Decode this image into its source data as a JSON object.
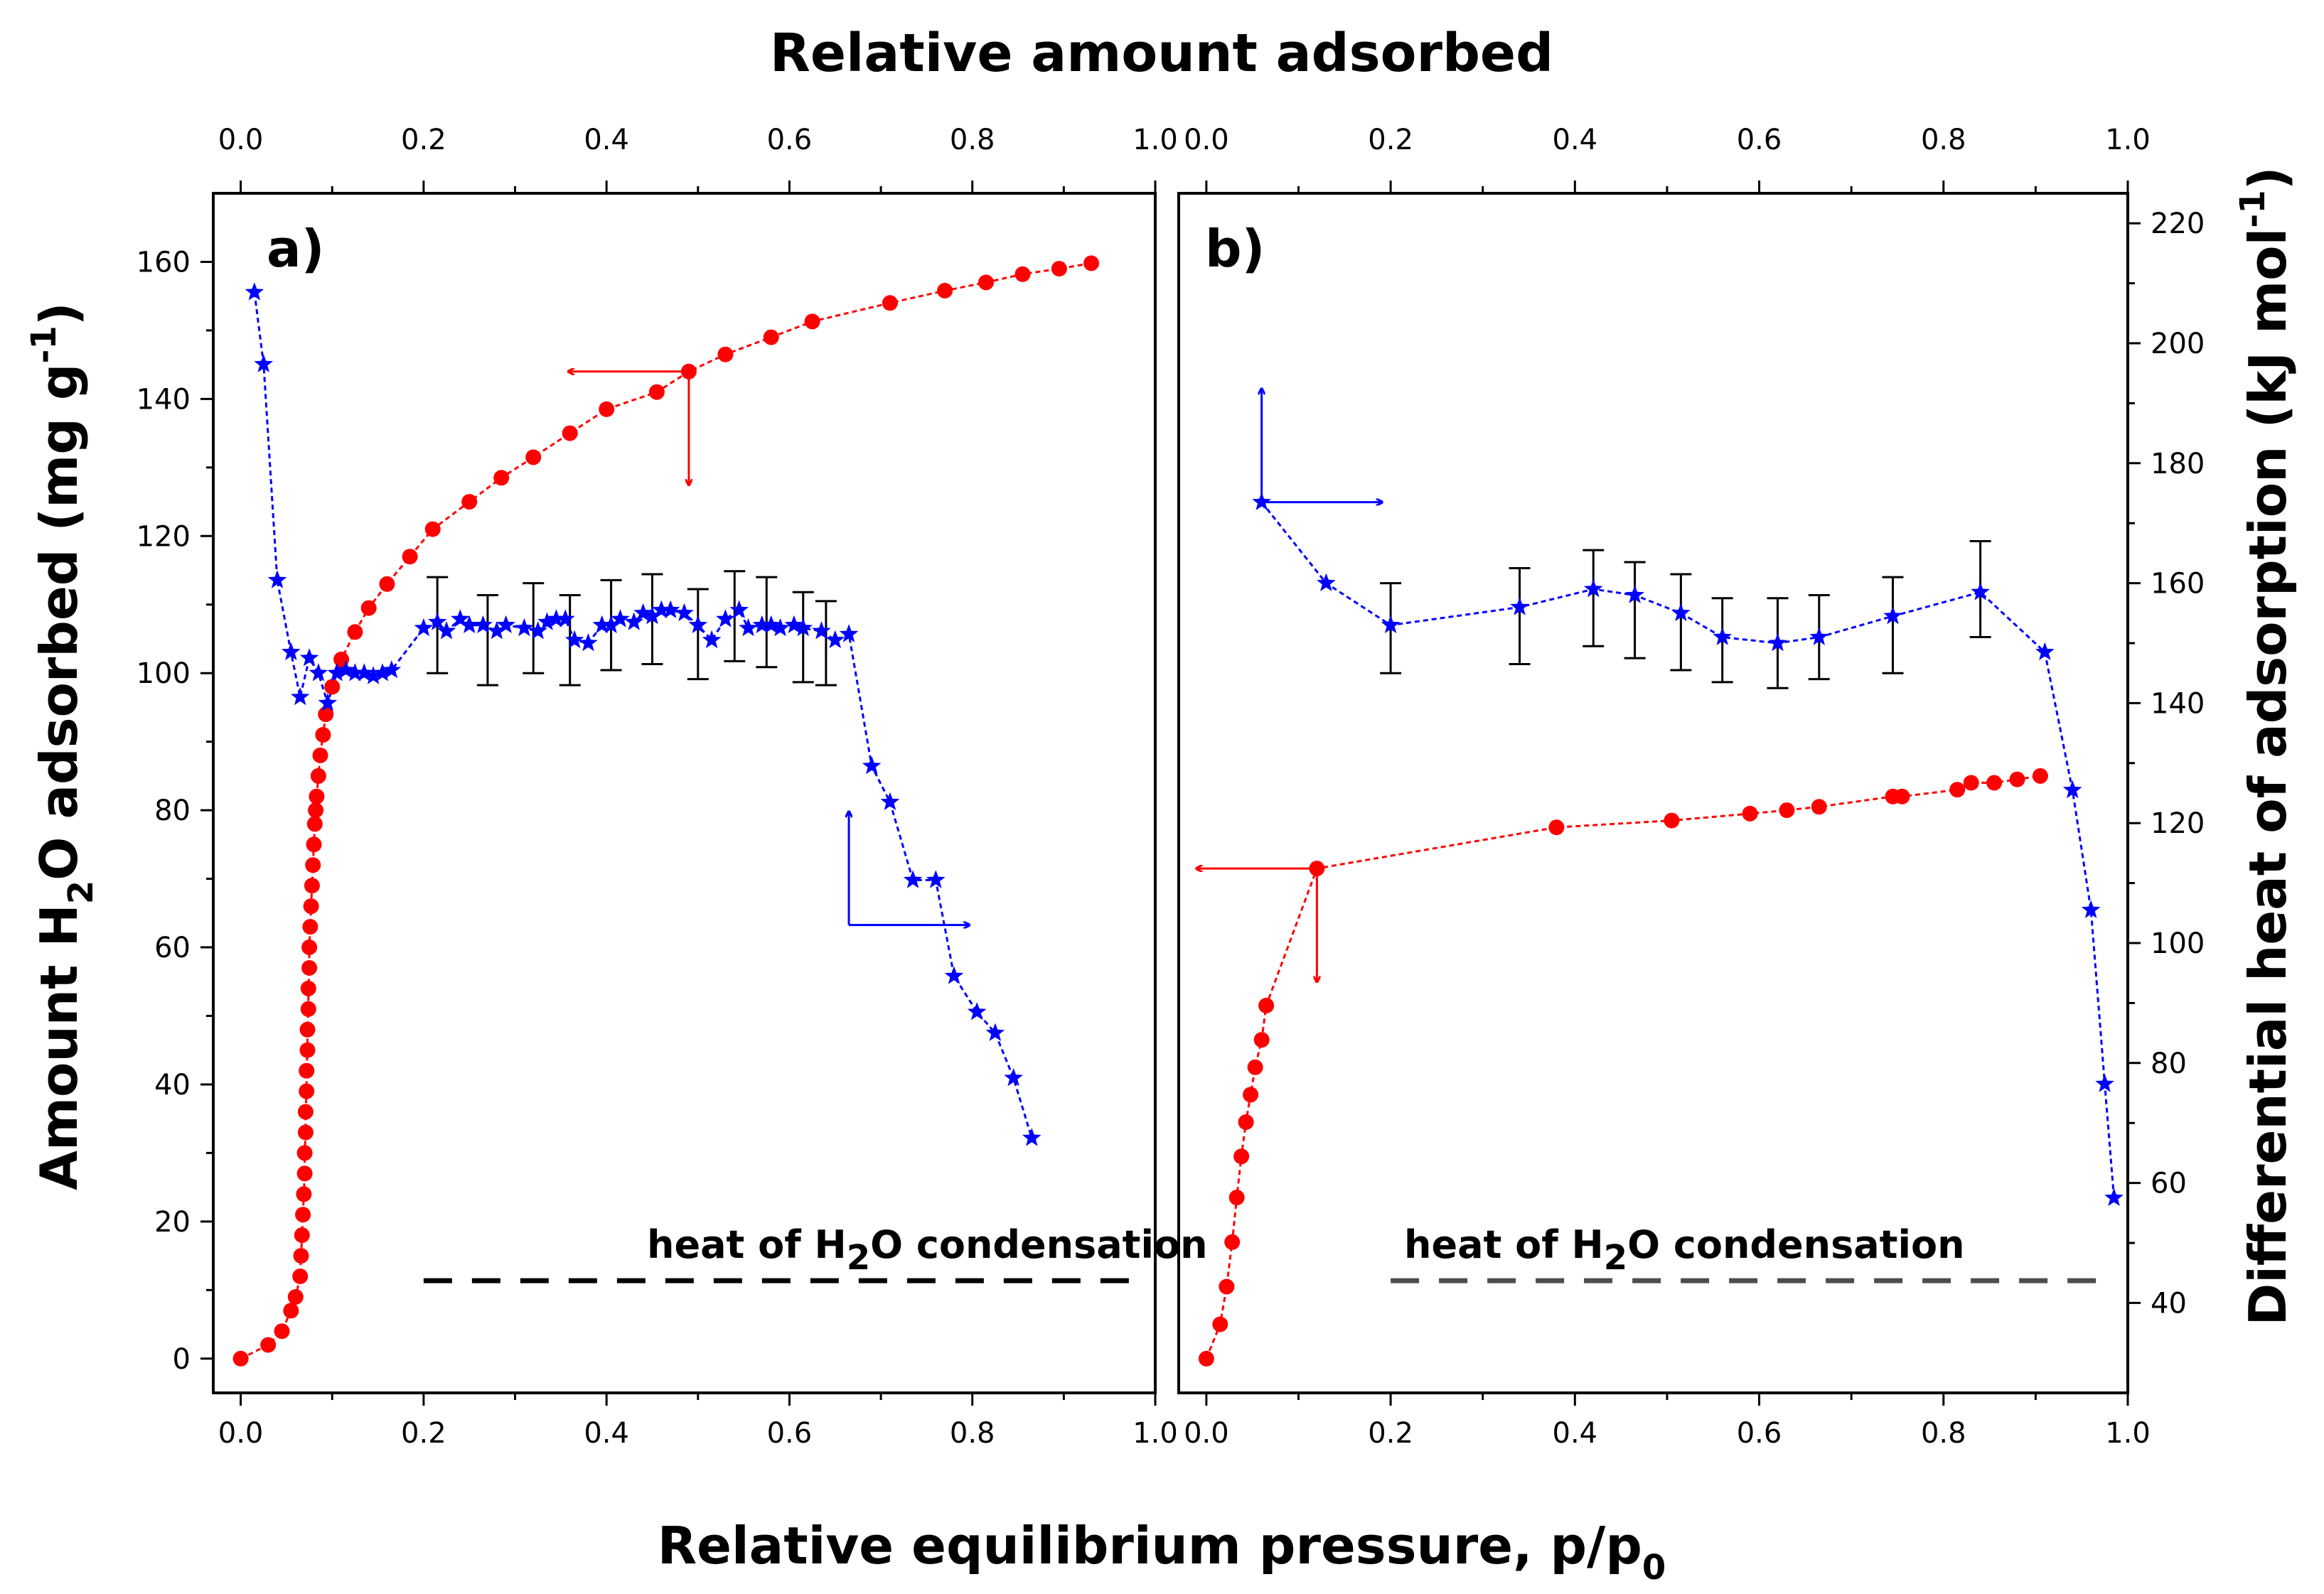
{
  "figure": {
    "top_title": "Relative amount adsorbed",
    "x_label": "Relative equilibrium pressure, p/p",
    "x_label_sub": "0",
    "y_left_label_pre": "Amount H",
    "y_left_label_sub": "2",
    "y_left_label_post": "O adsorbed (mg g",
    "y_left_label_sup": "-1",
    "y_left_label_end": ")",
    "y_right_label_pre": "Differential heat of adsorption (kJ mol",
    "y_right_label_sup": "-1",
    "y_right_label_end": ")",
    "condensation_pre": "heat of H",
    "condensation_sub": "2",
    "condensation_post": "O condensation",
    "colors": {
      "amount": "#ff0000",
      "heat": "#0000ff",
      "errorbar": "#000000",
      "condensation_a": "#000000",
      "condensation_b": "#4d4d4d"
    }
  },
  "chart_data": [
    {
      "panel": "a)",
      "type": "scatter",
      "xlim": [
        -0.03,
        1.0
      ],
      "x_ticks": [
        "0.0",
        "0.2",
        "0.4",
        "0.6",
        "0.8",
        "1.0"
      ],
      "top_ticks": [
        "0.0",
        "0.2",
        "0.4",
        "0.6",
        "0.8",
        "1.0"
      ],
      "y_left_lim": [
        -5,
        170
      ],
      "y_left_ticks": [
        "0",
        "20",
        "40",
        "60",
        "80",
        "100",
        "120",
        "140",
        "160"
      ],
      "y_right_lim": [
        25,
        225
      ],
      "condensation_heat": 43.7,
      "series": [
        {
          "name": "Amount adsorbed",
          "axis": "left",
          "marker": "circle",
          "x": [
            0.0,
            0.03,
            0.045,
            0.055,
            0.06,
            0.065,
            0.066,
            0.067,
            0.068,
            0.069,
            0.07,
            0.07,
            0.071,
            0.071,
            0.072,
            0.072,
            0.073,
            0.073,
            0.074,
            0.074,
            0.075,
            0.075,
            0.076,
            0.077,
            0.078,
            0.079,
            0.08,
            0.081,
            0.082,
            0.083,
            0.085,
            0.087,
            0.09,
            0.093,
            0.1,
            0.11,
            0.125,
            0.14,
            0.16,
            0.185,
            0.21,
            0.25,
            0.285,
            0.32,
            0.36,
            0.4,
            0.455,
            0.49,
            0.53,
            0.58,
            0.625,
            0.71,
            0.77,
            0.815,
            0.855,
            0.895,
            0.93
          ],
          "y": [
            0,
            2,
            4,
            7,
            9,
            12,
            15,
            18,
            21,
            24,
            27,
            30,
            33,
            36,
            39,
            42,
            45,
            48,
            51,
            54,
            57,
            60,
            63,
            66,
            69,
            72,
            75,
            78,
            80,
            82,
            85,
            88,
            91,
            94,
            98,
            102,
            106,
            109.5,
            113,
            117,
            121,
            125,
            128.5,
            131.5,
            135,
            138.5,
            141,
            144,
            146.5,
            149,
            151.3,
            154,
            155.8,
            157,
            158.2,
            159,
            159.8
          ]
        },
        {
          "name": "Differential heat",
          "axis": "right",
          "marker": "star",
          "x": [
            0.015,
            0.025,
            0.04,
            0.055,
            0.065,
            0.075,
            0.085,
            0.095,
            0.105,
            0.115,
            0.125,
            0.135,
            0.145,
            0.155,
            0.165,
            0.2,
            0.215,
            0.225,
            0.24,
            0.25,
            0.265,
            0.28,
            0.29,
            0.31,
            0.325,
            0.335,
            0.345,
            0.355,
            0.365,
            0.38,
            0.395,
            0.405,
            0.415,
            0.43,
            0.44,
            0.45,
            0.46,
            0.47,
            0.485,
            0.5,
            0.515,
            0.53,
            0.545,
            0.555,
            0.57,
            0.58,
            0.59,
            0.605,
            0.615,
            0.635,
            0.65,
            0.665,
            0.69,
            0.71,
            0.735,
            0.76,
            0.78,
            0.805,
            0.825,
            0.845,
            0.865
          ],
          "y": [
            208.5,
            196.5,
            160.5,
            148.5,
            141,
            147.5,
            145,
            140,
            145,
            145.5,
            145,
            145,
            144.5,
            145,
            145.5,
            152.5,
            153.5,
            152,
            154,
            153,
            153,
            152,
            153,
            152.5,
            152,
            153.5,
            154,
            154,
            150.5,
            150,
            153,
            153,
            154,
            153.5,
            155,
            154.5,
            155.5,
            155.5,
            155,
            153,
            150.5,
            154,
            155.5,
            152.5,
            153,
            153,
            152.5,
            153,
            152.5,
            152,
            150.5,
            151.5,
            129.5,
            123.5,
            110.5,
            110.5,
            94.5,
            88.5,
            85,
            77.5,
            67.5
          ]
        }
      ],
      "errorbars": {
        "x": [
          0.215,
          0.27,
          0.32,
          0.36,
          0.405,
          0.45,
          0.5,
          0.54,
          0.575,
          0.615,
          0.64
        ],
        "center": [
          153,
          150.5,
          152.5,
          150.5,
          153,
          154,
          151.5,
          154.5,
          153.5,
          151,
          150
        ],
        "err": [
          8,
          7.5,
          7.5,
          7.5,
          7.5,
          7.5,
          7.5,
          7.5,
          7.5,
          7.5,
          7
        ]
      },
      "arrows": [
        {
          "series": "Amount adsorbed",
          "origin_x": 0.49,
          "origin_y": 144,
          "direction": "left-down"
        },
        {
          "series": "Differential heat",
          "origin_x": 0.665,
          "origin_y": 103,
          "direction": "up-right"
        }
      ]
    },
    {
      "panel": "b)",
      "type": "scatter",
      "xlim": [
        -0.03,
        1.0
      ],
      "x_ticks": [
        "0.0",
        "0.2",
        "0.4",
        "0.6",
        "0.8",
        "1.0"
      ],
      "top_ticks": [
        "0.0",
        "0.2",
        "0.4",
        "0.6",
        "0.8",
        "1.0"
      ],
      "y_right_lim": [
        25,
        225
      ],
      "y_right_ticks": [
        "40",
        "60",
        "80",
        "100",
        "120",
        "140",
        "160",
        "180",
        "200",
        "220"
      ],
      "condensation_heat": 43.7,
      "series": [
        {
          "name": "Amount adsorbed",
          "axis": "left",
          "marker": "circle",
          "x": [
            0.0,
            0.015,
            0.022,
            0.028,
            0.033,
            0.038,
            0.043,
            0.048,
            0.053,
            0.06,
            0.065,
            0.12,
            0.38,
            0.505,
            0.59,
            0.63,
            0.665,
            0.745,
            0.755,
            0.815,
            0.83,
            0.855,
            0.88,
            0.905
          ],
          "y": [
            0,
            5,
            10.5,
            17,
            23.5,
            29.5,
            34.5,
            38.5,
            42.5,
            46.5,
            51.5,
            71.5,
            77.5,
            78.5,
            79.5,
            80,
            80.5,
            82,
            82,
            83,
            84,
            84,
            84.5,
            85
          ]
        },
        {
          "name": "Differential heat",
          "axis": "right",
          "marker": "star",
          "x": [
            0.06,
            0.13,
            0.2,
            0.34,
            0.42,
            0.465,
            0.515,
            0.56,
            0.62,
            0.665,
            0.745,
            0.84,
            0.91,
            0.94,
            0.96,
            0.975,
            0.985
          ],
          "y": [
            173.5,
            160,
            153,
            156,
            159,
            158,
            155,
            151,
            150,
            151,
            154.5,
            158.5,
            148.5,
            125.5,
            105.5,
            76.5,
            57.5
          ]
        }
      ],
      "errorbars": {
        "x": [
          0.2,
          0.34,
          0.42,
          0.465,
          0.515,
          0.56,
          0.62,
          0.665,
          0.745,
          0.84
        ],
        "center": [
          152.5,
          154.5,
          157.5,
          155.5,
          153.5,
          150.5,
          150,
          151,
          153,
          159
        ],
        "err": [
          7.5,
          8,
          8,
          8,
          8,
          7,
          7.5,
          7,
          8,
          8
        ]
      },
      "arrows": [
        {
          "series": "Amount adsorbed",
          "origin_x": 0.12,
          "origin_y": 71.5,
          "direction": "left-down"
        },
        {
          "series": "Differential heat",
          "origin_x": 0.06,
          "origin_y": 173.5,
          "direction": "up-right"
        }
      ]
    }
  ]
}
